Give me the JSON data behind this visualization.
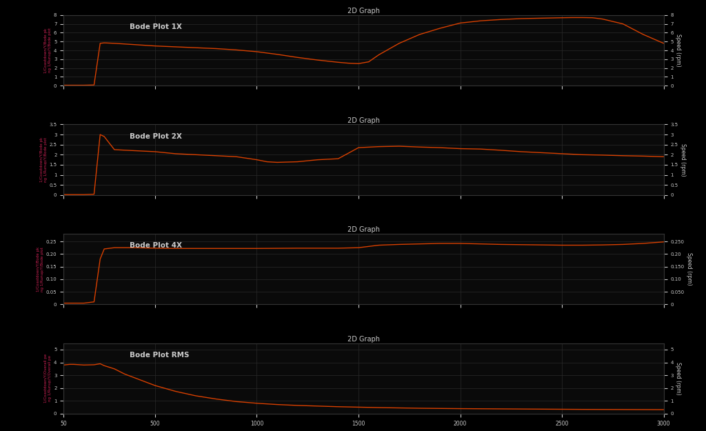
{
  "fig_title": "2D Graph",
  "xlim": [
    50,
    3000
  ],
  "background_color": "#000000",
  "plot_bg_color": "#0a0a0a",
  "line_color": "#d94000",
  "grid_color": "#2a2a2a",
  "text_color": "#cccccc",
  "label_color_pink": "#cc2255",
  "label_color_orange": "#cc5500",
  "xticks": [
    50,
    500,
    1000,
    1500,
    2000,
    2500,
    3000
  ],
  "xtick_labels": [
    "50",
    "500",
    "1000",
    "1500",
    "2000",
    "2500",
    "3000"
  ],
  "subplots": [
    {
      "title": "Bode Plot 1X",
      "ylim": [
        0,
        8
      ],
      "yticks": [
        0,
        1,
        2,
        3,
        4,
        5,
        6,
        7,
        8
      ],
      "ytick_labels_left": [
        "0",
        "1",
        "2",
        "3",
        "4",
        "5",
        "6",
        "7",
        "8"
      ],
      "ytick_labels_right": [
        "0",
        "1",
        "2",
        "3",
        "4",
        "5",
        "6",
        "7",
        "8"
      ],
      "ylabel_left1": "1/Coastdown/Y/Bode pk",
      "ylabel_left2": "ng 1/Runup/Y/Bode plot",
      "x": [
        50,
        80,
        100,
        150,
        200,
        230,
        250,
        300,
        400,
        500,
        600,
        700,
        800,
        900,
        1000,
        1100,
        1200,
        1300,
        1400,
        1450,
        1500,
        1550,
        1600,
        1700,
        1800,
        1900,
        2000,
        2100,
        2200,
        2300,
        2400,
        2500,
        2550,
        2600,
        2650,
        2700,
        2800,
        2900,
        3000
      ],
      "y": [
        0.05,
        0.05,
        0.05,
        0.05,
        0.08,
        4.8,
        4.85,
        4.8,
        4.65,
        4.5,
        4.4,
        4.3,
        4.2,
        4.05,
        3.85,
        3.55,
        3.2,
        2.9,
        2.65,
        2.55,
        2.5,
        2.7,
        3.5,
        4.8,
        5.8,
        6.5,
        7.1,
        7.35,
        7.5,
        7.6,
        7.65,
        7.7,
        7.72,
        7.72,
        7.7,
        7.55,
        7.0,
        5.8,
        4.8
      ]
    },
    {
      "title": "Bode Plot 2X",
      "ylim": [
        0,
        3.5
      ],
      "yticks": [
        0,
        0.5,
        1.0,
        1.5,
        2.0,
        2.5,
        3.0,
        3.5
      ],
      "ytick_labels_left": [
        "0",
        "0.5",
        "1",
        "1.5",
        "2",
        "2.5",
        "3",
        "3.5"
      ],
      "ytick_labels_right": [
        "0",
        "0.5",
        "1",
        "1.5",
        "2",
        "2.5",
        "3",
        "3.5"
      ],
      "ylabel_left1": "1/Coastdown/Y/Bode pk",
      "ylabel_left2": "ng 1/Runup/Y/Bode plot",
      "x": [
        50,
        80,
        100,
        150,
        200,
        230,
        250,
        300,
        400,
        500,
        600,
        700,
        800,
        900,
        1000,
        1050,
        1100,
        1200,
        1300,
        1400,
        1500,
        1600,
        1700,
        1800,
        1900,
        2000,
        2100,
        2200,
        2300,
        2400,
        2500,
        2600,
        2700,
        2800,
        2900,
        3000
      ],
      "y": [
        0.02,
        0.02,
        0.02,
        0.02,
        0.04,
        3.0,
        2.9,
        2.25,
        2.2,
        2.15,
        2.05,
        2.0,
        1.95,
        1.9,
        1.75,
        1.65,
        1.62,
        1.65,
        1.75,
        1.8,
        2.35,
        2.4,
        2.42,
        2.38,
        2.35,
        2.3,
        2.28,
        2.22,
        2.15,
        2.1,
        2.05,
        2.0,
        1.98,
        1.95,
        1.93,
        1.9
      ]
    },
    {
      "title": "Bode Plot 4X",
      "ylim": [
        0,
        0.28
      ],
      "yticks": [
        0,
        0.05,
        0.1,
        0.15,
        0.2,
        0.25
      ],
      "ytick_labels_left": [
        "0",
        "0.05",
        "0.10",
        "0.15",
        "0.20",
        "0.25"
      ],
      "ytick_labels_right": [
        "0",
        "0.050",
        "0.10",
        "0.150",
        "0.20",
        "0.250"
      ],
      "ylabel_left1": "1/Coastdown/Y/Bode pk",
      "ylabel_left2": "ng 1/Runup/Y/Bode plot",
      "x": [
        50,
        80,
        100,
        150,
        200,
        230,
        250,
        300,
        400,
        500,
        600,
        700,
        800,
        900,
        1000,
        1200,
        1400,
        1500,
        1600,
        1700,
        1800,
        1900,
        2000,
        2100,
        2200,
        2300,
        2400,
        2500,
        2600,
        2700,
        2800,
        2900,
        3000
      ],
      "y": [
        0.005,
        0.005,
        0.005,
        0.005,
        0.01,
        0.18,
        0.22,
        0.225,
        0.225,
        0.223,
        0.222,
        0.222,
        0.222,
        0.222,
        0.222,
        0.223,
        0.223,
        0.225,
        0.235,
        0.238,
        0.24,
        0.242,
        0.242,
        0.24,
        0.238,
        0.237,
        0.236,
        0.235,
        0.235,
        0.236,
        0.238,
        0.242,
        0.248
      ]
    },
    {
      "title": "Bode Plot RMS",
      "ylim": [
        0,
        5.5
      ],
      "yticks": [
        0,
        1,
        2,
        3,
        4,
        5
      ],
      "ytick_labels_left": [
        "0",
        "1",
        "2",
        "3",
        "4",
        "5"
      ],
      "ytick_labels_right": [
        "0",
        "1",
        "2",
        "3",
        "4",
        "5"
      ],
      "ylabel_left1": "1/Coastdown/Y/Overall pe",
      "ylabel_left2": "ng 1/Runup/Y/Overall pe",
      "x": [
        50,
        80,
        100,
        150,
        200,
        230,
        250,
        300,
        350,
        400,
        500,
        600,
        700,
        800,
        900,
        1000,
        1100,
        1200,
        1400,
        1600,
        1800,
        2000,
        2200,
        2400,
        2600,
        2800,
        3000
      ],
      "y": [
        3.8,
        3.85,
        3.85,
        3.8,
        3.82,
        3.9,
        3.75,
        3.5,
        3.1,
        2.8,
        2.2,
        1.75,
        1.4,
        1.15,
        0.95,
        0.82,
        0.72,
        0.65,
        0.55,
        0.48,
        0.43,
        0.4,
        0.38,
        0.36,
        0.34,
        0.33,
        0.32
      ]
    }
  ]
}
